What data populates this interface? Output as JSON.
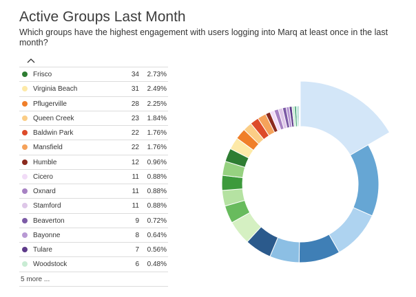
{
  "header": {
    "title": "Active Groups Last Month",
    "subtitle": "Which groups have the highest engagement with users logging into Marq at least once in the last month?"
  },
  "legend": {
    "more_label": "5 more ..."
  },
  "chart_data": {
    "type": "pie",
    "variant": "donut",
    "title": "Active Groups Last Month",
    "subtitle": "Which groups have the highest engagement with users logging into Marq at least once in the last month?",
    "legend_placement": "left",
    "legend_entries": [
      {
        "label": "Frisco",
        "value": 34,
        "percent": "2.73%",
        "color": "#2e7d32"
      },
      {
        "label": "Virginia Beach",
        "value": 31,
        "percent": "2.49%",
        "color": "#fde9a7"
      },
      {
        "label": "Pflugerville",
        "value": 28,
        "percent": "2.25%",
        "color": "#f07f2a"
      },
      {
        "label": "Queen Creek",
        "value": 23,
        "percent": "1.84%",
        "color": "#fbcd86"
      },
      {
        "label": "Baldwin Park",
        "value": 22,
        "percent": "1.76%",
        "color": "#dd4b2a"
      },
      {
        "label": "Mansfield",
        "value": 22,
        "percent": "1.76%",
        "color": "#f5a25a"
      },
      {
        "label": "Humble",
        "value": 12,
        "percent": "0.96%",
        "color": "#8b2a1e"
      },
      {
        "label": "Cicero",
        "value": 11,
        "percent": "0.88%",
        "color": "#f1dcf7"
      },
      {
        "label": "Oxnard",
        "value": 11,
        "percent": "0.88%",
        "color": "#a782c3"
      },
      {
        "label": "Stamford",
        "value": 11,
        "percent": "0.88%",
        "color": "#dec7e8"
      },
      {
        "label": "Beaverton",
        "value": 9,
        "percent": "0.72%",
        "color": "#7c5ba6"
      },
      {
        "label": "Bayonne",
        "value": 8,
        "percent": "0.64%",
        "color": "#b899d4"
      },
      {
        "label": "Tulare",
        "value": 7,
        "percent": "0.56%",
        "color": "#5e3b8a"
      },
      {
        "label": "Woodstock",
        "value": 6,
        "percent": "0.48%",
        "color": "#c9ecd4"
      }
    ],
    "slices": [
      {
        "value": 205,
        "color": "#d3e6f8"
      },
      {
        "value": 185,
        "color": "#66a6d4"
      },
      {
        "value": 125,
        "color": "#aed3f0"
      },
      {
        "value": 105,
        "color": "#3f7fb6"
      },
      {
        "value": 75,
        "color": "#8cbfe4"
      },
      {
        "value": 68,
        "color": "#2b5a8c"
      },
      {
        "value": 62,
        "color": "#d5f0c2"
      },
      {
        "value": 45,
        "color": "#68bb5d"
      },
      {
        "value": 40,
        "color": "#b5e2a2"
      },
      {
        "value": 38,
        "color": "#3d9a3c"
      },
      {
        "value": 36,
        "color": "#96d180"
      },
      {
        "value": 34,
        "color": "#2e7d32"
      },
      {
        "value": 31,
        "color": "#fde9a7"
      },
      {
        "value": 28,
        "color": "#f07f2a"
      },
      {
        "value": 23,
        "color": "#fbcd86"
      },
      {
        "value": 22,
        "color": "#dd4b2a"
      },
      {
        "value": 22,
        "color": "#f5a25a"
      },
      {
        "value": 12,
        "color": "#8b2a1e"
      },
      {
        "value": 11,
        "color": "#f1dcf7"
      },
      {
        "value": 11,
        "color": "#a782c3"
      },
      {
        "value": 11,
        "color": "#dec7e8"
      },
      {
        "value": 9,
        "color": "#7c5ba6"
      },
      {
        "value": 8,
        "color": "#b899d4"
      },
      {
        "value": 7,
        "color": "#5e3b8a"
      },
      {
        "value": 6,
        "color": "#c9ecd4"
      },
      {
        "value": 5,
        "color": "#4aa57a"
      },
      {
        "value": 4,
        "color": "#9ad8c6"
      },
      {
        "value": 3,
        "color": "#66b2a8"
      },
      {
        "value": 2,
        "color": "#c7e8f0"
      },
      {
        "value": 1,
        "color": "#8fb9c9"
      }
    ],
    "highlighted_slice_index": 0
  }
}
